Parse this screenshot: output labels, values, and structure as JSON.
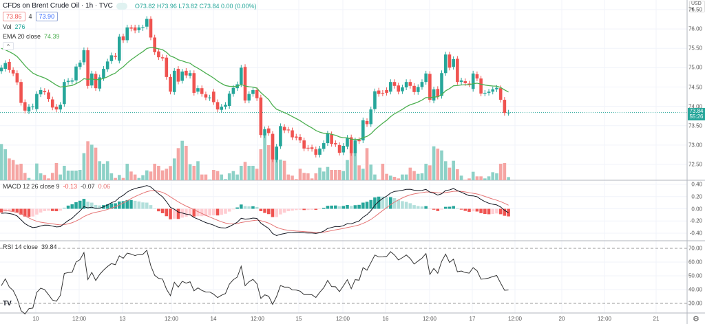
{
  "header": {
    "symbol_title": "CFDs on Brent Crude Oil · 1h · TVC",
    "ohlc": "O73.82 H73.96 L73.82 C73.84 0.00 (0.00%)",
    "sell_price": "73.86",
    "spread": "4",
    "buy_price": "73.90"
  },
  "indicators": {
    "vol_label": "Vol",
    "vol_value": "276",
    "ema_label": "EMA 20 close",
    "ema_value": "74.39",
    "macd_label": "MACD 12 26 close 9",
    "macd_hist": "-0.13",
    "macd_line": "-0.07",
    "macd_signal": "0.06",
    "rsi_label": "RSI 14 close",
    "rsi_value": "39.84"
  },
  "price_axis": {
    "currency": "USD ▾",
    "labels": [
      "76.50",
      "76.00",
      "75.50",
      "75.00",
      "74.50",
      "74.00",
      "73.50",
      "73.00",
      "72.50"
    ],
    "last_price": "73.84",
    "countdown": "55:26"
  },
  "macd_axis": {
    "labels": [
      "0.40",
      "0.20",
      "0.00",
      "-0.20",
      "-0.40"
    ]
  },
  "rsi_axis": {
    "labels": [
      "70.00",
      "60.00",
      "50.00",
      "40.00",
      "30.00"
    ]
  },
  "time_axis": {
    "labels": [
      "10",
      "12:00",
      "13",
      "12:00",
      "14",
      "12:00",
      "15",
      "12:00",
      "16",
      "12:00",
      "17",
      "12:00",
      "20",
      "12:00",
      "21"
    ]
  },
  "colors": {
    "up": "#26a69a",
    "down": "#ef5350",
    "ema": "#4caf50",
    "macd": "#131722",
    "signal": "#e57373"
  },
  "chart_data": {
    "type": "candlestick",
    "interval": "1h",
    "candles_oc": [
      [
        74.91,
        75.0
      ],
      [
        74.97,
        75.12
      ],
      [
        75.15,
        74.94
      ],
      [
        74.94,
        74.85
      ],
      [
        74.86,
        74.62
      ],
      [
        74.63,
        74.09
      ],
      [
        74.11,
        73.89
      ],
      [
        73.87,
        73.99
      ],
      [
        73.98,
        74.0
      ],
      [
        73.93,
        74.32
      ],
      [
        74.31,
        74.42
      ],
      [
        74.4,
        74.37
      ],
      [
        74.36,
        74.19
      ],
      [
        74.18,
        73.97
      ],
      [
        73.99,
        73.92
      ],
      [
        73.92,
        74.04
      ],
      [
        74.06,
        74.63
      ],
      [
        74.63,
        74.66
      ],
      [
        74.64,
        74.67
      ],
      [
        74.67,
        75.03
      ],
      [
        75.02,
        75.13
      ],
      [
        75.14,
        75.45
      ],
      [
        75.45,
        74.53
      ],
      [
        74.54,
        74.85
      ],
      [
        74.84,
        74.47
      ],
      [
        74.46,
        74.75
      ],
      [
        74.73,
        74.97
      ],
      [
        74.96,
        75.16
      ],
      [
        75.17,
        75.32
      ],
      [
        75.31,
        75.28
      ],
      [
        75.18,
        75.8
      ],
      [
        75.81,
        75.71
      ],
      [
        75.71,
        76.04
      ],
      [
        76.04,
        76.01
      ],
      [
        76.04,
        75.96
      ],
      [
        75.97,
        76.04
      ],
      [
        76.02,
        76.04
      ],
      [
        76.06,
        76.26
      ],
      [
        76.26,
        75.78
      ],
      [
        75.78,
        75.4
      ],
      [
        75.42,
        75.27
      ],
      [
        75.27,
        75.24
      ],
      [
        75.26,
        74.76
      ],
      [
        74.76,
        74.38
      ],
      [
        74.37,
        74.92
      ],
      [
        74.97,
        74.64
      ],
      [
        74.66,
        74.9
      ],
      [
        74.92,
        74.8
      ],
      [
        74.79,
        74.86
      ],
      [
        74.86,
        74.35
      ],
      [
        74.38,
        74.47
      ],
      [
        74.47,
        74.32
      ],
      [
        74.31,
        74.23
      ],
      [
        74.21,
        74.23
      ],
      [
        74.38,
        74.11
      ],
      [
        74.11,
        73.92
      ],
      [
        73.91,
        73.99
      ],
      [
        73.99,
        74.04
      ],
      [
        74.01,
        74.33
      ],
      [
        74.32,
        74.48
      ],
      [
        74.47,
        74.57
      ],
      [
        74.57,
        75.0
      ],
      [
        75.02,
        74.15
      ],
      [
        74.15,
        74.32
      ],
      [
        74.32,
        74.42
      ],
      [
        74.42,
        74.21
      ],
      [
        74.23,
        73.26
      ],
      [
        73.25,
        73.41
      ],
      [
        73.43,
        73.31
      ],
      [
        73.29,
        72.63
      ],
      [
        72.62,
        72.96
      ],
      [
        72.97,
        73.49
      ],
      [
        73.47,
        73.38
      ],
      [
        73.4,
        73.38
      ],
      [
        73.38,
        73.2
      ],
      [
        73.22,
        73.19
      ],
      [
        73.21,
        73.12
      ],
      [
        73.12,
        72.91
      ],
      [
        72.93,
        72.91
      ],
      [
        72.94,
        72.9
      ],
      [
        72.89,
        72.75
      ],
      [
        72.75,
        72.91
      ],
      [
        72.9,
        73.05
      ],
      [
        73.05,
        73.3
      ],
      [
        73.28,
        73.03
      ],
      [
        73.05,
        73.02
      ],
      [
        73.0,
        72.8
      ],
      [
        72.81,
        72.98
      ],
      [
        72.96,
        73.19
      ],
      [
        73.2,
        72.79
      ],
      [
        72.78,
        73.12
      ],
      [
        73.13,
        73.1
      ],
      [
        73.12,
        73.64
      ],
      [
        73.62,
        73.54
      ],
      [
        73.54,
        73.92
      ],
      [
        73.93,
        74.39
      ],
      [
        74.41,
        74.32
      ],
      [
        74.35,
        74.33
      ],
      [
        74.42,
        74.35
      ],
      [
        74.38,
        74.63
      ],
      [
        74.63,
        74.53
      ],
      [
        74.54,
        74.38
      ],
      [
        74.39,
        74.49
      ],
      [
        74.49,
        74.63
      ],
      [
        74.63,
        74.53
      ],
      [
        74.53,
        74.37
      ],
      [
        74.37,
        74.5
      ],
      [
        74.5,
        74.63
      ],
      [
        74.63,
        74.85
      ],
      [
        74.84,
        74.17
      ],
      [
        74.15,
        74.44
      ],
      [
        74.45,
        74.25
      ],
      [
        74.27,
        74.86
      ],
      [
        74.86,
        75.34
      ],
      [
        75.34,
        75.0
      ],
      [
        75.02,
        75.22
      ],
      [
        75.23,
        74.63
      ],
      [
        74.63,
        74.67
      ],
      [
        74.65,
        74.6
      ],
      [
        74.59,
        74.57
      ],
      [
        74.45,
        74.85
      ],
      [
        74.83,
        74.72
      ],
      [
        74.72,
        74.33
      ],
      [
        74.33,
        74.35
      ],
      [
        74.35,
        74.38
      ],
      [
        74.38,
        74.44
      ],
      [
        74.44,
        74.48
      ],
      [
        74.47,
        74.17
      ],
      [
        74.17,
        73.83
      ],
      [
        73.83,
        73.84
      ]
    ],
    "volume": [
      3160,
      2700,
      1900,
      1760,
      1360,
      1440,
      640,
      200,
      40,
      1460,
      600,
      460,
      160,
      640,
      1500,
      500,
      1260,
      840,
      840,
      840,
      900,
      2360,
      3400,
      3100,
      2840,
      1660,
      1440,
      1660,
      600,
      200,
      460,
      200,
      1440,
      760,
      500,
      200,
      440,
      860,
      760,
      1440,
      1260,
      860,
      1000,
      1240,
      1900,
      2800,
      3440,
      3000,
      1400,
      1260,
      1660,
      500,
      500,
      60,
      900,
      800,
      500,
      100,
      600,
      800,
      500,
      1260,
      1600,
      1260,
      1260,
      1000,
      2700,
      4000,
      3060,
      4000,
      1800,
      1800,
      1700,
      500,
      400,
      100,
      1000,
      640,
      600,
      160,
      600,
      1100,
      760,
      1160,
      900,
      900,
      900,
      800,
      1760,
      2800,
      2300,
      1300,
      1000,
      2800,
      1360,
      500,
      60,
      1440,
      560,
      400,
      300,
      160,
      500,
      500,
      1100,
      800,
      560,
      600,
      1440,
      1300,
      2960,
      2760,
      2600,
      1660,
      1100,
      1700,
      960,
      400,
      40,
      160,
      740,
      340,
      340,
      160,
      340,
      700,
      600,
      1440,
      1500,
      276
    ],
    "ema_period": 20,
    "ema_seed": 75.55,
    "macd_seeds": {
      "ema12": 75.13,
      "ema26": 75.2,
      "signal": 0.0
    },
    "rsi_seeds": {
      "avg_gain": 0.045,
      "avg_loss": 0.06
    },
    "price_range": [
      72.25,
      76.75
    ],
    "macd_range": [
      -0.5,
      0.45
    ],
    "rsi_range": [
      25,
      75
    ]
  }
}
